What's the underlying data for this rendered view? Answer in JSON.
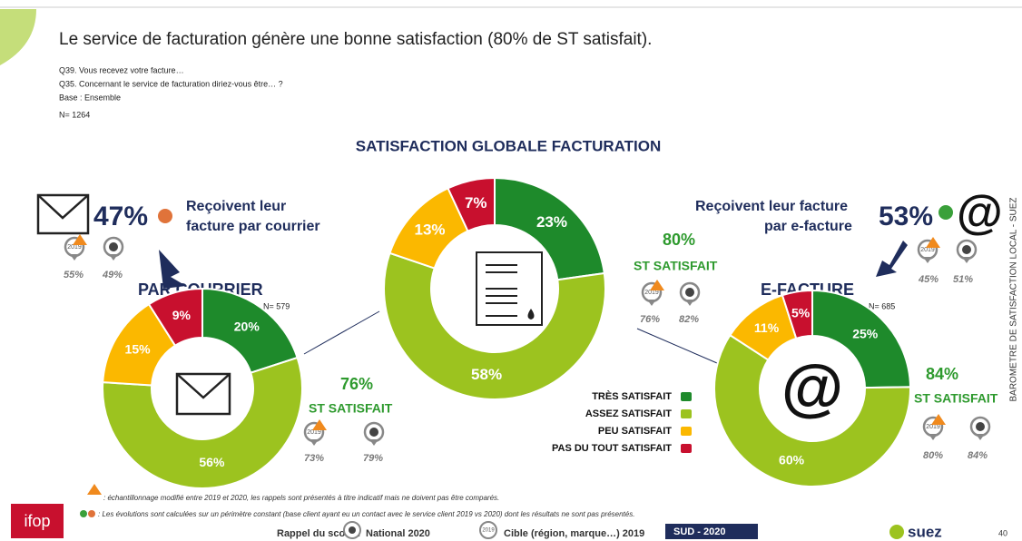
{
  "title": "Le service de facturation génère une bonne satisfaction (80% de ST satisfait).",
  "questions": [
    "Q39. Vous recevez votre facture…",
    "Q35. Concernant le service de facturation diriez-vous être… ?",
    "Base : Ensemble"
  ],
  "base_n": "N= 1264",
  "badge_label": "2019",
  "courrier": {
    "share": "47%",
    "text": [
      "Reçoivent leur",
      "facture par courrier"
    ],
    "rappel_2019": "55%",
    "rappel_national": "49%",
    "heading": "PAR COURRIER",
    "n": "N= 579",
    "st": "76%",
    "st_label": "ST SATISFAIT",
    "st_2019": "73%",
    "st_national": "79%"
  },
  "global": {
    "st": "80%",
    "st_label": "ST SATISFAIT",
    "st_2019": "76%",
    "st_national": "82%"
  },
  "efacture": {
    "share": "53%",
    "text": [
      "Reçoivent leur facture",
      "par e-facture"
    ],
    "icon": "@",
    "rappel_2019": "45%",
    "rappel_national": "51%",
    "heading": "E-FACTURE",
    "n": "N= 685",
    "st": "84%",
    "st_label": "ST SATISFAIT",
    "st_2019": "80%",
    "st_national": "84%"
  },
  "chart_data": [
    {
      "type": "donut",
      "title": "SATISFACTION GLOBALE FACTURATION",
      "categories": [
        "TRÈS SATISFAIT",
        "ASSEZ SATISFAIT",
        "PEU SATISFAIT",
        "PAS DU TOUT SATISFAIT"
      ],
      "colors": [
        "#1e8a2b",
        "#9cc31f",
        "#fbb800",
        "#c8102e"
      ],
      "values": [
        23,
        58,
        13,
        7
      ],
      "value_labels": [
        "23%",
        "58%",
        "13%",
        "7%"
      ]
    },
    {
      "type": "donut",
      "colors": [
        "#1e8a2b",
        "#9cc31f",
        "#fbb800",
        "#c8102e"
      ],
      "values": [
        20,
        56,
        15,
        9
      ],
      "value_labels": [
        "20%",
        "56%",
        "15%",
        "9%"
      ]
    },
    {
      "type": "donut",
      "colors": [
        "#1e8a2b",
        "#9cc31f",
        "#fbb800",
        "#c8102e"
      ],
      "values": [
        25,
        60,
        11,
        5
      ],
      "value_labels": [
        "25%",
        "60%",
        "11%",
        "5%"
      ]
    }
  ],
  "notes": [
    ": échantillonnage modifié entre 2019 et 2020, les rappels sont présentés à titre indicatif mais ne doivent pas être comparés.",
    ": Les évolutions sont calculées sur un périmètre constant (base client ayant eu un contact avec le service client 2019 vs 2020) dont les résultats ne sont pas présentés."
  ],
  "footer": {
    "rappel": "Rappel du score :",
    "national": "National 2020",
    "cible": "Cible (région, marque…) 2019",
    "region": "SUD - 2020",
    "page": "40",
    "ifop": "ifop",
    "suez": "suez"
  },
  "side_text": "BAROMETRE DE SATISFACTION LOCAL - SUEZ"
}
